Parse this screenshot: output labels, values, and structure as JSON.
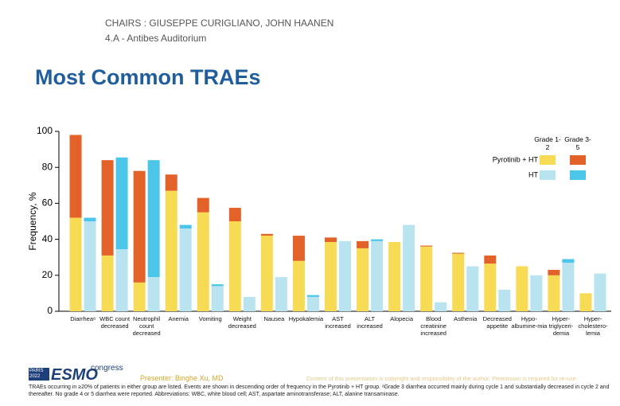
{
  "header": {
    "chairs": "CHAIRS : GIUSEPPE CURIGLIANO, JOHN HAANEN",
    "room": "4.A - Antibes Auditorium"
  },
  "chart_data": {
    "type": "bar",
    "title": "Most Common TRAEs",
    "y_label": "Frequency, %",
    "categories": [
      "Diarrheaᵃ",
      "WBC count decreased",
      "Neutrophil count decreased",
      "Anemia",
      "Vomiting",
      "Weight decreased",
      "Nausea",
      "Hypokalemia",
      "AST increased",
      "ALT increased",
      "Alopecia",
      "Blood creatinine increased",
      "Asthenia",
      "Decreased appetite",
      "Hypo-albumine-mia",
      "Hyper-triglyceri-demia",
      "Hyper-cholestero-lemia"
    ],
    "stack_names": [
      "Grade 1-2",
      "Grade 3-5"
    ],
    "groups": [
      {
        "name": "Pyrotinib + HT",
        "colors": [
          "#f8db55",
          "#e2622a"
        ],
        "stacks": [
          [
            52,
            31,
            16,
            67,
            55,
            50,
            42,
            28,
            38.5,
            35,
            38.5,
            36,
            32,
            26.5,
            25,
            20,
            10
          ],
          [
            46,
            53,
            62,
            9,
            8,
            7.5,
            1,
            14,
            2.5,
            4,
            0,
            0.5,
            0.5,
            4.5,
            0,
            3,
            0
          ]
        ]
      },
      {
        "name": "HT",
        "colors": [
          "#b9e4ef",
          "#4cc6e8"
        ],
        "stacks": [
          [
            50,
            34.5,
            19,
            46,
            14,
            8,
            19,
            8,
            39,
            39,
            48,
            5,
            25,
            12,
            20,
            27,
            21
          ],
          [
            2,
            51,
            65,
            2,
            1,
            0,
            0,
            1,
            0,
            1,
            0,
            0,
            0,
            0,
            0,
            2,
            0
          ]
        ]
      }
    ],
    "ylim": [
      0,
      100
    ],
    "yticks": [
      0,
      20,
      40,
      60,
      80,
      100
    ],
    "grid": false,
    "legend": "upper right"
  },
  "footer": {
    "logo_city": "PARIS 2022",
    "logo_brand": "ESMO",
    "logo_suffix": "congress",
    "presenter": "Presenter: Binghe Xu, MD",
    "copyright": "Content of this presentation is copyright and responsibility of the author. Permission is required for re-use.",
    "footnote": "TRAEs occurring in ≥20% of patients in either group are listed. Events are shown in descending order of frequency in the Pyrotinib + HT group. ᵃGrade 3 diarrhea occurred mainly during cycle 1 and substantially decreased in cycle 2 and thereafter. No grade 4 or 5 diarrhea were reported. Abbreviations: WBC, white blood cell; AST, aspartate aminotransferase; ALT, alanine transaminase."
  }
}
